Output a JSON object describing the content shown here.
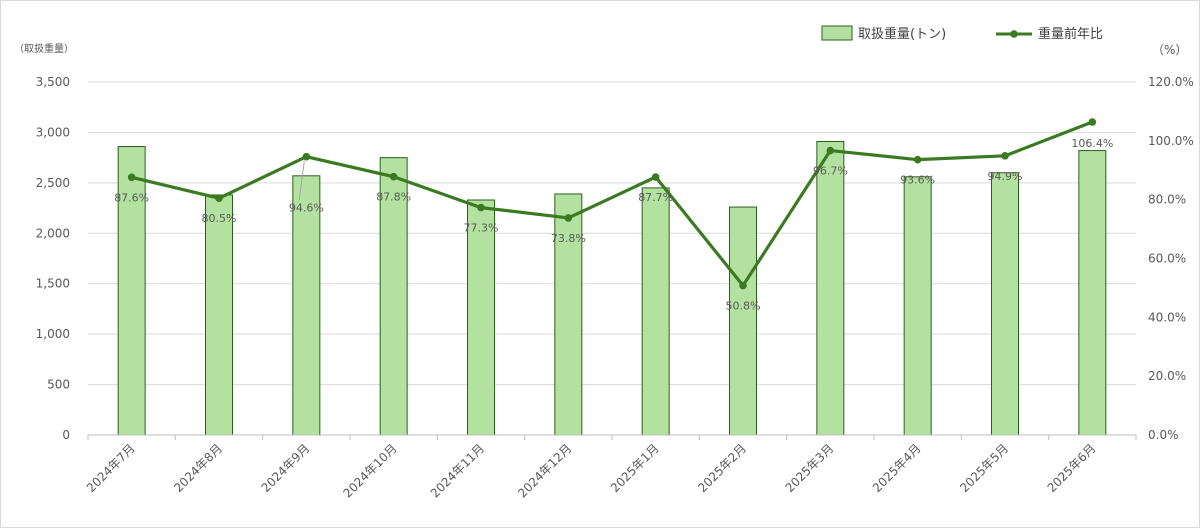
{
  "chart_data": {
    "type": "bar+line",
    "categories": [
      "2024年7月",
      "2024年8月",
      "2024年9月",
      "2024年10月",
      "2024年11月",
      "2024年12月",
      "2025年1月",
      "2025年2月",
      "2025年3月",
      "2025年4月",
      "2025年5月",
      "2025年6月"
    ],
    "series": [
      {
        "name": "取扱重量(トン)",
        "type": "bar",
        "axis": "left",
        "color": "#b3e2a0",
        "edge_color": "#2e5e1e",
        "values": [
          2860,
          2380,
          2570,
          2750,
          2330,
          2390,
          2450,
          2260,
          2910,
          2560,
          2600,
          2820
        ]
      },
      {
        "name": "重量前年比",
        "type": "line",
        "axis": "right",
        "color": "#3b7a22",
        "values": [
          87.6,
          80.5,
          94.6,
          87.8,
          77.3,
          73.8,
          87.7,
          50.8,
          96.7,
          93.6,
          94.9,
          106.4
        ],
        "labels": [
          "87.6%",
          "80.5%",
          "94.6%",
          "87.8%",
          "77.3%",
          "73.8%",
          "87.7%",
          "50.8%",
          "96.7%",
          "93.6%",
          "94.9%",
          "106.4%"
        ]
      }
    ],
    "left_axis": {
      "label": "（取扱重量）",
      "range": [
        0,
        3500
      ],
      "ticks": [
        "0",
        "500",
        "1,000",
        "1,500",
        "2,000",
        "2,500",
        "3,000",
        "3,500"
      ]
    },
    "right_axis": {
      "label": "（%）",
      "range": [
        0,
        120
      ],
      "ticks": [
        "0.0%",
        "20.0%",
        "40.0%",
        "60.0%",
        "80.0%",
        "100.0%",
        "120.0%"
      ]
    },
    "grid": true,
    "legend": "top-right"
  }
}
